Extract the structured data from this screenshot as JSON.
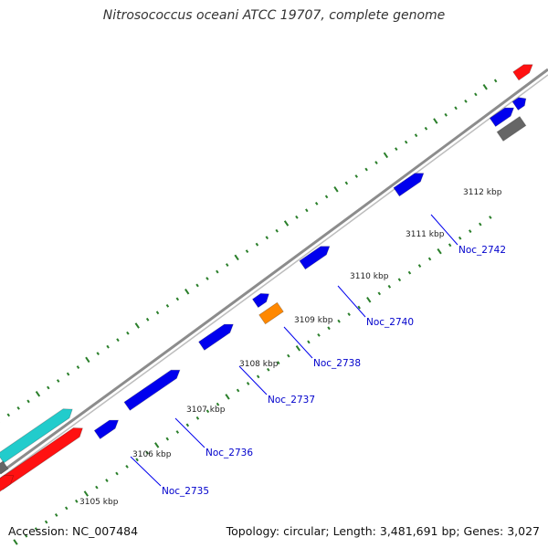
{
  "title": "Nitrosococcus oceani ATCC 19707, complete genome",
  "footer": {
    "accession": "Accession: NC_007484",
    "summary": "Topology: circular; Length: 3,481,691 bp; Genes: 3,027"
  },
  "colors": {
    "backbone": "#8c8c8c",
    "tick": "#2a7f2a",
    "gene_blue": "#0000ee",
    "gene_red": "#ff1111",
    "gene_cyan": "#22cccc",
    "gene_orange": "#ff8800",
    "gene_gray": "#666666",
    "label_line": "#0000ee"
  },
  "ticks": [
    {
      "label": "3105 kbp"
    },
    {
      "label": "3106 kbp"
    },
    {
      "label": "3107 kbp"
    },
    {
      "label": "3108 kbp"
    },
    {
      "label": "3109 kbp"
    },
    {
      "label": "3110 kbp"
    },
    {
      "label": "3111 kbp"
    },
    {
      "label": "3112 kbp"
    }
  ],
  "gene_labels": [
    "Noc_2735",
    "Noc_2736",
    "Noc_2737",
    "Noc_2738",
    "Noc_2740",
    "Noc_2742"
  ]
}
